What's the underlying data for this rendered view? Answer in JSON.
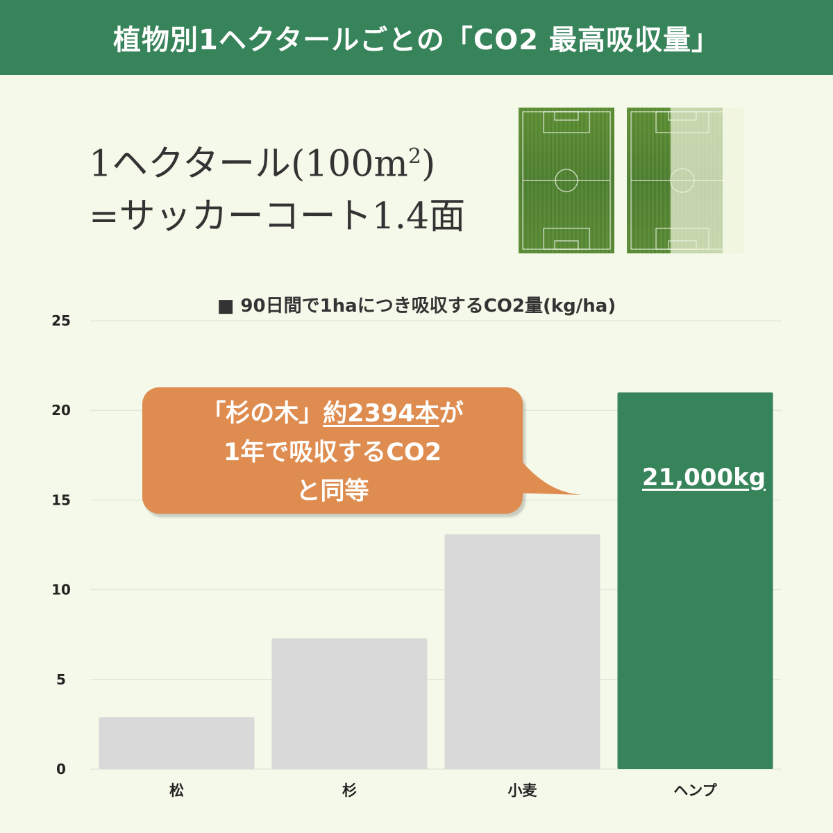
{
  "header": {
    "title": "植物別1ヘクタールごとの「CO2 最高吸収量」"
  },
  "hectare_note": {
    "line1_prefix": "1ヘクタール(100m",
    "line1_exp": "2",
    "line1_suffix": ")",
    "line2": "=サッカーコート1.4面"
  },
  "callout": {
    "part1": "「杉の木」",
    "part2": "約2394本",
    "part3": "が",
    "line2": "1年で吸収するCO2",
    "line3": "と同等"
  },
  "colors": {
    "header": "#37835a",
    "background": "#f5f9ea",
    "bar_default": "#d9d9d9",
    "bar_highlight": "#37835a",
    "callout": "#de8c4f"
  },
  "chart_data": {
    "type": "bar",
    "title": "■ 90日間で1haにつき吸収するCO2量(kg/ha)",
    "categories": [
      "松",
      "杉",
      "小麦",
      "ヘンプ"
    ],
    "values": [
      2.9,
      7.3,
      13.1,
      21
    ],
    "highlight_index": 3,
    "highlight_label": "21,000kg",
    "ylim": [
      0,
      25
    ],
    "yticks": [
      0,
      5,
      10,
      15,
      20,
      25
    ],
    "grid": true,
    "xlabel": "",
    "ylabel": ""
  }
}
